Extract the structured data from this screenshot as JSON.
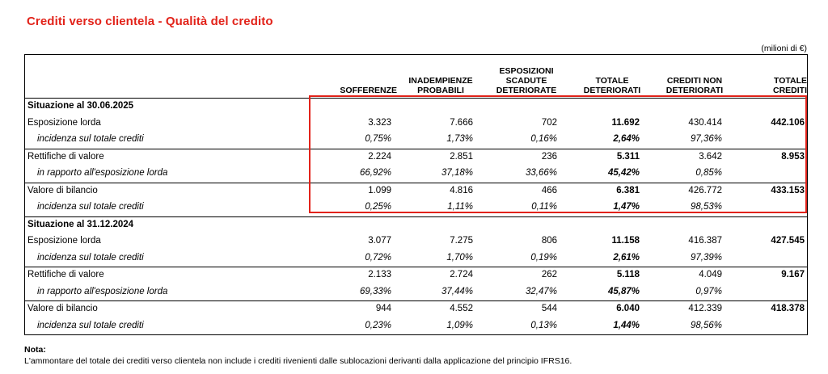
{
  "title": "Crediti verso clientela - Qualità del credito",
  "unit": "(milioni di €)",
  "columns": [
    "SOFFERENZE",
    "INADEMPIENZE\nPROBABILI",
    "ESPOSIZIONI\nSCADUTE\nDETERIORATE",
    "TOTALE\nDETERIORATI",
    "CREDITI NON\nDETERIORATI",
    "TOTALE\nCREDITI"
  ],
  "sections": [
    {
      "heading": "Situazione al 30.06.2025",
      "rows": [
        {
          "label": "Esposizione lorda",
          "values": [
            "3.323",
            "7.666",
            "702",
            "11.692",
            "430.414",
            "442.106"
          ]
        },
        {
          "label": "incidenza sul totale crediti",
          "values": [
            "0,75%",
            "1,73%",
            "0,16%",
            "2,64%",
            "97,36%",
            ""
          ]
        },
        {
          "label": "Rettifiche di valore",
          "values": [
            "2.224",
            "2.851",
            "236",
            "5.311",
            "3.642",
            "8.953"
          ]
        },
        {
          "label": "in rapporto all'esposizione lorda",
          "values": [
            "66,92%",
            "37,18%",
            "33,66%",
            "45,42%",
            "0,85%",
            ""
          ]
        },
        {
          "label": "Valore di bilancio",
          "values": [
            "1.099",
            "4.816",
            "466",
            "6.381",
            "426.772",
            "433.153"
          ]
        },
        {
          "label": "incidenza sul totale crediti",
          "values": [
            "0,25%",
            "1,11%",
            "0,11%",
            "1,47%",
            "98,53%",
            ""
          ]
        }
      ]
    },
    {
      "heading": "Situazione al 31.12.2024",
      "rows": [
        {
          "label": "Esposizione lorda",
          "values": [
            "3.077",
            "7.275",
            "806",
            "11.158",
            "416.387",
            "427.545"
          ]
        },
        {
          "label": "incidenza sul totale crediti",
          "values": [
            "0,72%",
            "1,70%",
            "0,19%",
            "2,61%",
            "97,39%",
            ""
          ]
        },
        {
          "label": "Rettifiche di valore",
          "values": [
            "2.133",
            "2.724",
            "262",
            "5.118",
            "4.049",
            "9.167"
          ]
        },
        {
          "label": "in rapporto all'esposizione lorda",
          "values": [
            "69,33%",
            "37,44%",
            "32,47%",
            "45,87%",
            "0,97%",
            ""
          ]
        },
        {
          "label": "Valore di bilancio",
          "values": [
            "944",
            "4.552",
            "544",
            "6.040",
            "412.339",
            "418.378"
          ]
        },
        {
          "label": "incidenza sul totale crediti",
          "values": [
            "0,23%",
            "1,09%",
            "0,13%",
            "1,44%",
            "98,56%",
            ""
          ]
        }
      ]
    }
  ],
  "note_title": "Nota:",
  "note": "L'ammontare del totale dei crediti verso clientela non include i crediti rivenienti dalle sublocazioni derivanti dalla applicazione del principio IFRS16.",
  "highlight_color": "#e2231a"
}
